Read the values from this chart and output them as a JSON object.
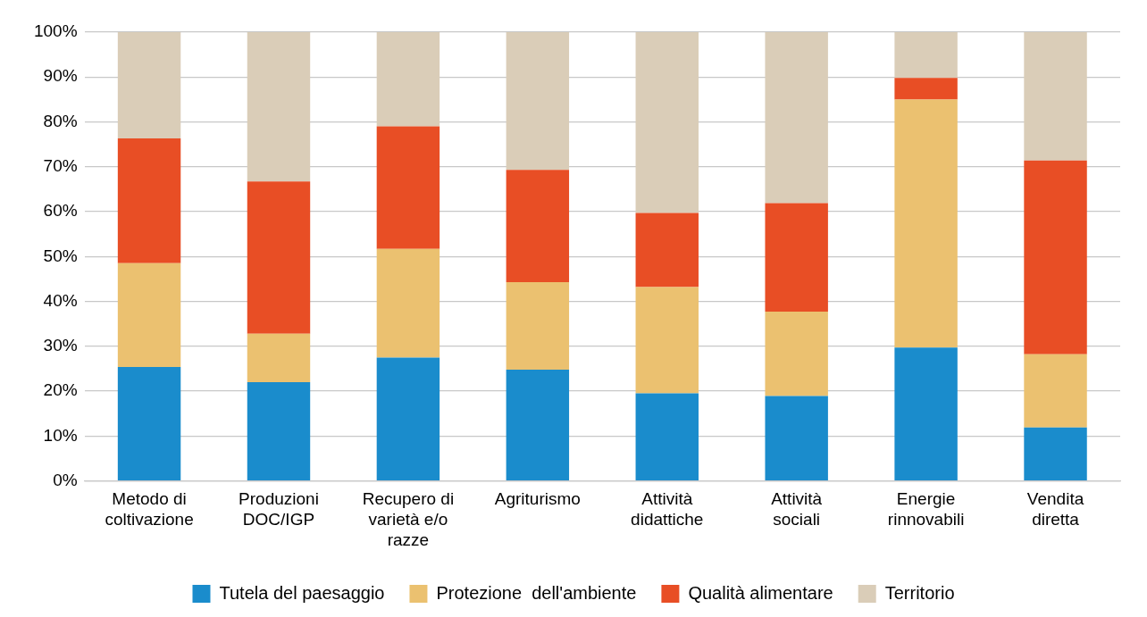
{
  "chart_data": {
    "type": "bar",
    "stacked": true,
    "categories": [
      "Metodo di coltivazione",
      "Produzioni DOC/IGP",
      "Recupero di varietà e/o razze",
      "Agriturismo",
      "Attività didattiche",
      "Attività sociali",
      "Energie rinnovabili",
      "Vendita diretta"
    ],
    "series": [
      {
        "name": "Tutela del paesaggio",
        "color": "#1a8ccc",
        "values": [
          25.4,
          22.0,
          27.5,
          24.8,
          19.5,
          18.9,
          29.7,
          11.9
        ]
      },
      {
        "name": "Protezione  dell'ambiente",
        "color": "#ebc170",
        "values": [
          23.1,
          10.8,
          24.2,
          19.5,
          23.7,
          18.8,
          55.3,
          16.3
        ]
      },
      {
        "name": "Qualità alimentare",
        "color": "#e84e25",
        "values": [
          27.8,
          33.9,
          27.3,
          25.0,
          16.5,
          24.2,
          4.8,
          43.2
        ]
      },
      {
        "name": "Territorio",
        "color": "#dacdb8",
        "values": [
          23.7,
          33.3,
          21.0,
          30.7,
          40.3,
          38.1,
          10.2,
          28.6
        ]
      }
    ],
    "ylim": [
      0,
      100
    ],
    "yticks": [
      {
        "value": 0,
        "label": "0%"
      },
      {
        "value": 10,
        "label": "10%"
      },
      {
        "value": 20,
        "label": "20%"
      },
      {
        "value": 30,
        "label": "30%"
      },
      {
        "value": 40,
        "label": "40%"
      },
      {
        "value": 50,
        "label": "50%"
      },
      {
        "value": 60,
        "label": "60%"
      },
      {
        "value": 70,
        "label": "70%"
      },
      {
        "value": 80,
        "label": "80%"
      },
      {
        "value": 90,
        "label": "90%"
      },
      {
        "value": 100,
        "label": "100%"
      }
    ],
    "grid": "y",
    "legend": "bottom"
  }
}
